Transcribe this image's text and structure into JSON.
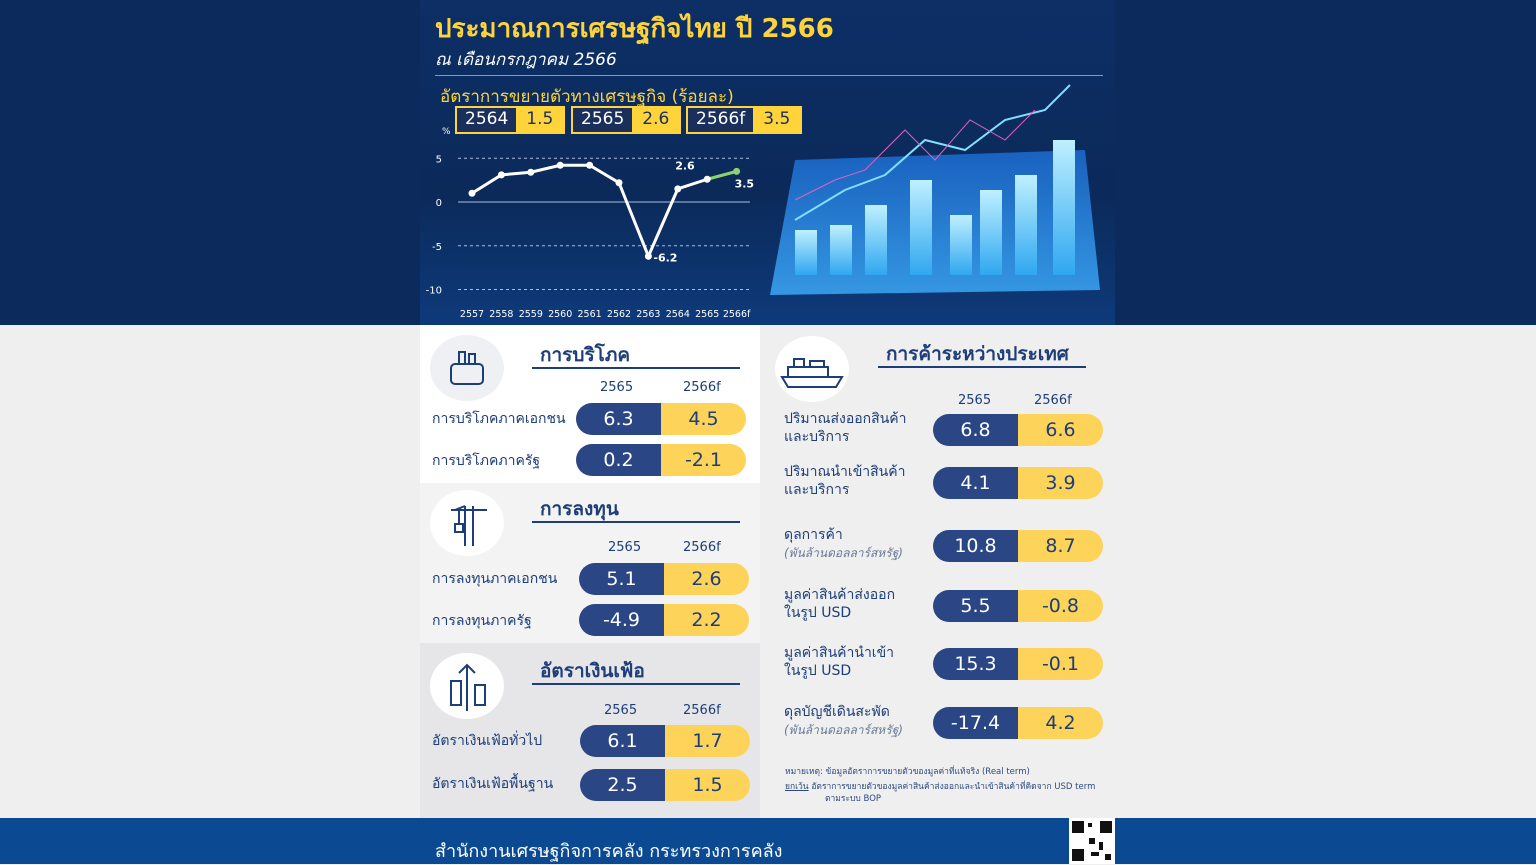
{
  "header": {
    "title": "ประมาณการเศรษฐกิจไทย ปี 2566",
    "subtitle": "ณ เดือนกรกฎาคม 2566"
  },
  "chart_data": {
    "type": "line",
    "title": "อัตราการขยายตัวทางเศรษฐกิจ (ร้อยละ)",
    "ylabel": "%",
    "ylim": [
      -10,
      5
    ],
    "yticks": [
      5,
      0,
      -5,
      -10
    ],
    "grid": "dashed horizontal",
    "categories": [
      "2557",
      "2558",
      "2559",
      "2560",
      "2561",
      "2562",
      "2563",
      "2564",
      "2565",
      "2566f"
    ],
    "values": [
      1.0,
      3.1,
      3.4,
      4.2,
      4.2,
      2.2,
      -6.2,
      1.5,
      2.6,
      3.5
    ],
    "data_labels": [
      {
        "category": "2563",
        "text": "-6.2"
      },
      {
        "category": "2565",
        "text": "2.6"
      },
      {
        "category": "2566f",
        "text": "3.5"
      }
    ],
    "colors": {
      "actual": "#ffffff",
      "forecast": "#8fd16a"
    }
  },
  "key_figures": [
    {
      "year": "2564",
      "value": "1.5"
    },
    {
      "year": "2565",
      "value": "2.6"
    },
    {
      "year": "2566f",
      "value": "3.5"
    }
  ],
  "cols": {
    "a": "2565",
    "b": "2566f"
  },
  "consumption": {
    "title": "การบริโภค",
    "rows": [
      {
        "label": "การบริโภคภาคเอกชน",
        "a": "6.3",
        "b": "4.5"
      },
      {
        "label": "การบริโภคภาครัฐ",
        "a": "0.2",
        "b": "-2.1"
      }
    ]
  },
  "investment": {
    "title": "การลงทุน",
    "rows": [
      {
        "label": "การลงทุนภาคเอกชน",
        "a": "5.1",
        "b": "2.6"
      },
      {
        "label": "การลงทุนภาครัฐ",
        "a": "-4.9",
        "b": "2.2"
      }
    ]
  },
  "inflation": {
    "title": "อัตราเงินเฟ้อ",
    "rows": [
      {
        "label": "อัตราเงินเฟ้อทั่วไป",
        "a": "6.1",
        "b": "1.7"
      },
      {
        "label": "อัตราเงินเฟ้อพื้นฐาน",
        "a": "2.5",
        "b": "1.5"
      }
    ]
  },
  "trade": {
    "title": "การค้าระหว่างประเทศ",
    "rows": [
      {
        "label": "ปริมาณส่งออกสินค้า",
        "label2": "และบริการ",
        "note": "",
        "a": "6.8",
        "b": "6.6"
      },
      {
        "label": "ปริมาณนำเข้าสินค้า",
        "label2": "และบริการ",
        "note": "",
        "a": "4.1",
        "b": "3.9"
      },
      {
        "label": "ดุลการค้า",
        "label2": "",
        "note": "(พันล้านดอลลาร์สหรัฐ)",
        "a": "10.8",
        "b": "8.7"
      },
      {
        "label": "มูลค่าสินค้าส่งออก",
        "label2": "ในรูป USD",
        "note": "",
        "a": "5.5",
        "b": "-0.8"
      },
      {
        "label": "มูลค่าสินค้านำเข้า",
        "label2": "ในรูป USD",
        "note": "",
        "a": "15.3",
        "b": "-0.1"
      },
      {
        "label": "ดุลบัญชีเดินสะพัด",
        "label2": "",
        "note": "(พันล้านดอลลาร์สหรัฐ)",
        "a": "-17.4",
        "b": "4.2"
      }
    ]
  },
  "notes": {
    "n1": "หมายเหตุ: ข้อมูลอัตราการขยายตัวของมูลค่าที่แท้จริง (Real term)",
    "n2_prefix": "ยกเว้น",
    "n2": "อัตราการขยายตัวของมูลค่าสินค้าส่งออกและนำเข้าสินค้าที่คิดจาก USD term",
    "n3": "ตามระบบ BOP"
  },
  "footer": {
    "org": "สำนักงานเศรษฐกิจการคลัง กระทรวงการคลัง"
  }
}
